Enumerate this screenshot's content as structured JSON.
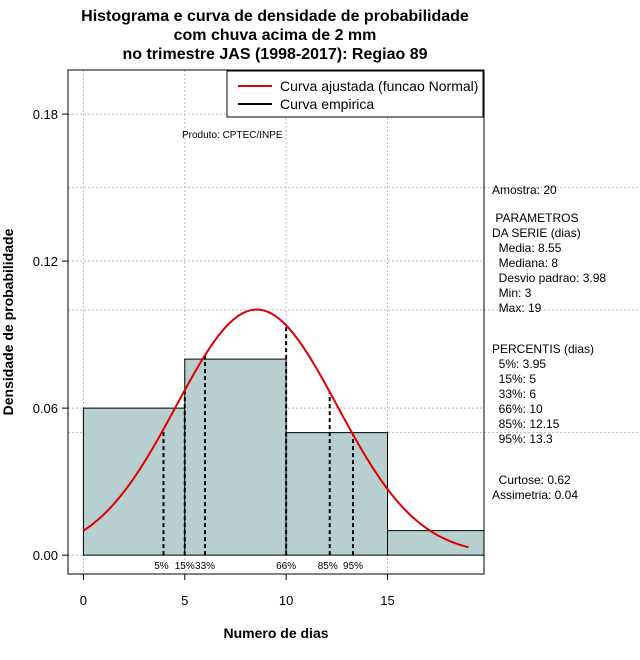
{
  "title_lines": [
    "Histograma e curva de densidade de probabilidade",
    "com chuva acima de 2 mm",
    "no trimestre JAS (1998-2017): Regiao 89"
  ],
  "chart_data": {
    "type": "bar",
    "xlabel": "Numero de dias",
    "ylabel": "Densidade de probabilidade",
    "xlim": [
      -0.76,
      19.76
    ],
    "ylim": [
      -0.0077,
      0.198
    ],
    "x_ticks": [
      0,
      5,
      10,
      15
    ],
    "y_ticks": [
      0.0,
      0.06,
      0.12,
      0.18
    ],
    "y_tick_labels": [
      "0.00",
      "0.06",
      "0.12",
      "0.18"
    ],
    "grid": true,
    "grid_y_extra": [
      0.15,
      0.1,
      0.05
    ],
    "histogram": {
      "bins": [
        [
          0,
          5
        ],
        [
          5,
          10
        ],
        [
          10,
          15
        ],
        [
          15,
          20
        ]
      ],
      "density": [
        0.06,
        0.08,
        0.05,
        0.01
      ],
      "fill_color": "#b7cfcf",
      "edge_color": "#000000"
    },
    "normal_curve": {
      "name": "Curva ajustada (funcao Normal)",
      "mean": 8.55,
      "sd": 3.98,
      "x_range": [
        0,
        19
      ],
      "color": "#e00000"
    },
    "empirical_curve": {
      "name": "Curva empirica",
      "color": "#000000"
    },
    "percentile_lines": [
      {
        "label": "5%",
        "x": 3.95
      },
      {
        "label": "15%",
        "x": 5
      },
      {
        "label": "33%",
        "x": 6
      },
      {
        "label": "66%",
        "x": 10
      },
      {
        "label": "85%",
        "x": 12.15
      },
      {
        "label": "95%",
        "x": 13.3
      }
    ],
    "legend": {
      "position": "top-right",
      "entries": [
        {
          "label": "Curva ajustada (funcao Normal)",
          "color": "#e00000"
        },
        {
          "label": "Curva empirica",
          "color": "#000000"
        }
      ]
    },
    "annotation_produto": "Produto: CPTEC/INPE"
  },
  "side_panel": {
    "amostra": "Amostra: 20",
    "parametros_title": [
      " PARAMETROS",
      "DA SERIE (dias)"
    ],
    "parametros": [
      "  Media: 8.55",
      "  Mediana: 8",
      "  Desvio padrao: 3.98",
      "  Min: 3",
      "  Max: 19"
    ],
    "percentis_title": "PERCENTIS (dias)",
    "percentis": [
      "  5%: 3.95",
      "  15%: 5",
      "  33%: 6",
      "  66%: 10",
      "  85%: 12.15",
      "  95%: 13.3"
    ],
    "curtose": "  Curtose: 0.62",
    "assimetria": "Assimetria: 0.04"
  }
}
